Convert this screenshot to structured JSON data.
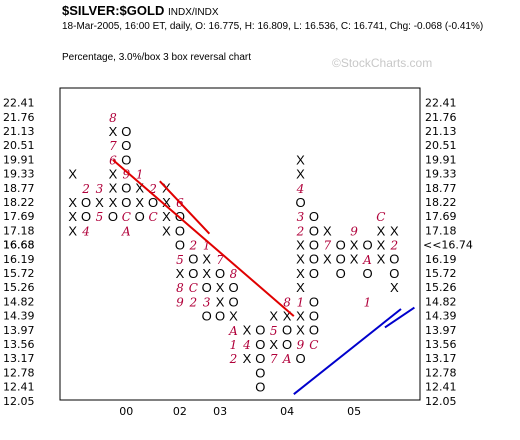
{
  "header": {
    "title": "$SILVER:$GOLD",
    "title_suffix": "INDX/INDX",
    "quote_line": "18-Mar-2005, 16:00 ET, daily, O: 16.775, H: 16.809, L: 16.536, C: 16.741, Chg: -0.068 (-0.41%)",
    "chart_desc": "Percentage, 3.0%/box 3 box reversal chart",
    "watermark": "©StockCharts.com"
  },
  "colors": {
    "x_mark": "#000000",
    "o_mark": "#000000",
    "month_mark": "#b0003a",
    "resistance_line": "#e00000",
    "support_line": "#0000cc",
    "highlight_label": "#b0003a"
  },
  "chart_data": {
    "type": "point-and-figure",
    "box_percent": 3.0,
    "reversal_boxes": 3,
    "y_ticks": [
      "22.41",
      "21.76",
      "21.13",
      "20.51",
      "19.91",
      "19.33",
      "18.77",
      "18.22",
      "17.69",
      "17.18",
      "16.68",
      "16.19",
      "15.72",
      "15.26",
      "14.82",
      "14.39",
      "13.97",
      "13.56",
      "13.17",
      "12.78",
      "12.41",
      "12.05"
    ],
    "y_ticks_right": [
      "22.41",
      "21.76",
      "21.13",
      "20.51",
      "19.91",
      "19.33",
      "18.77",
      "18.22",
      "17.69",
      "17.18",
      "",
      "16.19",
      "15.72",
      "15.26",
      "14.82",
      "14.39",
      "13.97",
      "13.56",
      "13.17",
      "12.78",
      "12.41",
      "12.05"
    ],
    "y_highlight_left": "16.68",
    "y_highlight_right": "<<16.74",
    "x_labels": [
      {
        "label": "00",
        "col": 4
      },
      {
        "label": "02",
        "col": 8
      },
      {
        "label": "03",
        "col": 11
      },
      {
        "label": "04",
        "col": 16
      },
      {
        "label": "05",
        "col": 21
      }
    ],
    "columns": [
      {
        "col": 0,
        "type": "X",
        "marks": [
          {
            "row": 5,
            "c": "X"
          },
          {
            "row": 7,
            "c": "X"
          },
          {
            "row": 8,
            "c": "X"
          },
          {
            "row": 9,
            "c": "X"
          }
        ]
      },
      {
        "col": 1,
        "type": "O",
        "marks": [
          {
            "row": 6,
            "c": "2"
          },
          {
            "row": 7,
            "c": "O"
          },
          {
            "row": 8,
            "c": "O"
          },
          {
            "row": 9,
            "c": "4"
          }
        ]
      },
      {
        "col": 2,
        "type": "X",
        "marks": [
          {
            "row": 6,
            "c": "3"
          },
          {
            "row": 7,
            "c": "X"
          },
          {
            "row": 8,
            "c": "5"
          }
        ]
      },
      {
        "col": 3,
        "type": "O",
        "marks": [
          {
            "row": 1,
            "c": "8"
          },
          {
            "row": 2,
            "c": "X"
          },
          {
            "row": 3,
            "c": "7"
          },
          {
            "row": 4,
            "c": "6"
          },
          {
            "row": 5,
            "c": "X"
          },
          {
            "row": 6,
            "c": "X"
          },
          {
            "row": 7,
            "c": "X"
          },
          {
            "row": 8,
            "c": "O"
          }
        ]
      },
      {
        "col": 4,
        "type": "X",
        "marks": [
          {
            "row": 2,
            "c": "O"
          },
          {
            "row": 3,
            "c": "O"
          },
          {
            "row": 4,
            "c": "O"
          },
          {
            "row": 5,
            "c": "9"
          },
          {
            "row": 6,
            "c": "O"
          },
          {
            "row": 7,
            "c": "O"
          },
          {
            "row": 8,
            "c": "C"
          },
          {
            "row": 9,
            "c": "A"
          }
        ]
      },
      {
        "col": 5,
        "type": "O",
        "marks": [
          {
            "row": 5,
            "c": "1"
          },
          {
            "row": 6,
            "c": "X"
          },
          {
            "row": 7,
            "c": "X"
          },
          {
            "row": 8,
            "c": "O"
          }
        ]
      },
      {
        "col": 6,
        "type": "X",
        "marks": [
          {
            "row": 6,
            "c": "2"
          },
          {
            "row": 7,
            "c": "O"
          },
          {
            "row": 8,
            "c": "C"
          }
        ]
      },
      {
        "col": 7,
        "type": "O",
        "marks": [
          {
            "row": 6,
            "c": "X"
          },
          {
            "row": 7,
            "c": "X"
          },
          {
            "row": 8,
            "c": "X"
          },
          {
            "row": 9,
            "c": "X"
          }
        ]
      },
      {
        "col": 8,
        "type": "X",
        "marks": [
          {
            "row": 7,
            "c": "6"
          },
          {
            "row": 8,
            "c": "O"
          },
          {
            "row": 9,
            "c": "O"
          },
          {
            "row": 10,
            "c": "O"
          },
          {
            "row": 11,
            "c": "5"
          },
          {
            "row": 12,
            "c": "X"
          },
          {
            "row": 13,
            "c": "8"
          },
          {
            "row": 14,
            "c": "9"
          }
        ]
      },
      {
        "col": 9,
        "type": "O",
        "marks": [
          {
            "row": 10,
            "c": "2"
          },
          {
            "row": 11,
            "c": "O"
          },
          {
            "row": 12,
            "c": "O"
          },
          {
            "row": 13,
            "c": "C"
          },
          {
            "row": 14,
            "c": "2"
          }
        ]
      },
      {
        "col": 10,
        "type": "X",
        "marks": [
          {
            "row": 10,
            "c": "1"
          },
          {
            "row": 11,
            "c": "X"
          },
          {
            "row": 12,
            "c": "X"
          },
          {
            "row": 13,
            "c": "O"
          },
          {
            "row": 14,
            "c": "3"
          },
          {
            "row": 15,
            "c": "O"
          }
        ]
      },
      {
        "col": 11,
        "type": "O",
        "marks": [
          {
            "row": 11,
            "c": "7"
          },
          {
            "row": 12,
            "c": "O"
          },
          {
            "row": 13,
            "c": "X"
          },
          {
            "row": 14,
            "c": "X"
          },
          {
            "row": 15,
            "c": "O"
          }
        ]
      },
      {
        "col": 12,
        "type": "X",
        "marks": [
          {
            "row": 12,
            "c": "8"
          },
          {
            "row": 13,
            "c": "O"
          },
          {
            "row": 14,
            "c": "O"
          },
          {
            "row": 15,
            "c": "X"
          },
          {
            "row": 16,
            "c": "A"
          },
          {
            "row": 17,
            "c": "1"
          },
          {
            "row": 18,
            "c": "2"
          }
        ]
      },
      {
        "col": 13,
        "type": "O",
        "marks": [
          {
            "row": 16,
            "c": "X"
          },
          {
            "row": 17,
            "c": "4"
          },
          {
            "row": 18,
            "c": "X"
          }
        ]
      },
      {
        "col": 14,
        "type": "X",
        "marks": [
          {
            "row": 16,
            "c": "O"
          },
          {
            "row": 17,
            "c": "O"
          },
          {
            "row": 18,
            "c": "O"
          },
          {
            "row": 19,
            "c": "O"
          },
          {
            "row": 20,
            "c": "O"
          }
        ]
      },
      {
        "col": 15,
        "type": "O",
        "marks": [
          {
            "row": 15,
            "c": "X"
          },
          {
            "row": 16,
            "c": "5"
          },
          {
            "row": 17,
            "c": "X"
          },
          {
            "row": 18,
            "c": "7"
          }
        ]
      },
      {
        "col": 16,
        "type": "X",
        "marks": [
          {
            "row": 14,
            "c": "8"
          },
          {
            "row": 15,
            "c": "X"
          },
          {
            "row": 16,
            "c": "O"
          },
          {
            "row": 17,
            "c": "O"
          },
          {
            "row": 18,
            "c": "A"
          }
        ]
      },
      {
        "col": 17,
        "type": "O",
        "marks": [
          {
            "row": 4,
            "c": "X"
          },
          {
            "row": 5,
            "c": "X"
          },
          {
            "row": 6,
            "c": "4"
          },
          {
            "row": 7,
            "c": "O"
          },
          {
            "row": 8,
            "c": "3"
          },
          {
            "row": 9,
            "c": "2"
          },
          {
            "row": 10,
            "c": "X"
          },
          {
            "row": 11,
            "c": "X"
          },
          {
            "row": 12,
            "c": "X"
          },
          {
            "row": 13,
            "c": "X"
          },
          {
            "row": 14,
            "c": "1"
          },
          {
            "row": 15,
            "c": "X"
          },
          {
            "row": 16,
            "c": "X"
          },
          {
            "row": 17,
            "c": "9"
          },
          {
            "row": 18,
            "c": "O"
          }
        ]
      },
      {
        "col": 18,
        "type": "X",
        "marks": [
          {
            "row": 8,
            "c": "O"
          },
          {
            "row": 9,
            "c": "O"
          },
          {
            "row": 10,
            "c": "O"
          },
          {
            "row": 11,
            "c": "O"
          },
          {
            "row": 12,
            "c": "O"
          },
          {
            "row": 14,
            "c": "O"
          },
          {
            "row": 15,
            "c": "O"
          },
          {
            "row": 16,
            "c": "O"
          },
          {
            "row": 17,
            "c": "C"
          }
        ]
      },
      {
        "col": 19,
        "type": "O",
        "marks": [
          {
            "row": 9,
            "c": "X"
          },
          {
            "row": 10,
            "c": "7"
          },
          {
            "row": 11,
            "c": "X"
          }
        ]
      },
      {
        "col": 20,
        "type": "X",
        "marks": [
          {
            "row": 10,
            "c": "O"
          },
          {
            "row": 11,
            "c": "O"
          },
          {
            "row": 12,
            "c": "O"
          }
        ]
      },
      {
        "col": 21,
        "type": "O",
        "marks": [
          {
            "row": 9,
            "c": "9"
          },
          {
            "row": 10,
            "c": "X"
          },
          {
            "row": 11,
            "c": "X"
          }
        ]
      },
      {
        "col": 22,
        "type": "X",
        "marks": [
          {
            "row": 10,
            "c": "O"
          },
          {
            "row": 11,
            "c": "A"
          },
          {
            "row": 12,
            "c": "O"
          },
          {
            "row": 14,
            "c": "1"
          }
        ]
      },
      {
        "col": 23,
        "type": "O",
        "marks": [
          {
            "row": 8,
            "c": "C"
          },
          {
            "row": 9,
            "c": "X"
          },
          {
            "row": 10,
            "c": "X"
          },
          {
            "row": 11,
            "c": "X"
          }
        ]
      },
      {
        "col": 24,
        "type": "X",
        "marks": [
          {
            "row": 9,
            "c": "X"
          },
          {
            "row": 10,
            "c": "2"
          },
          {
            "row": 11,
            "c": "O"
          },
          {
            "row": 12,
            "c": "O"
          },
          {
            "row": 13,
            "c": "X"
          }
        ]
      }
    ],
    "trend_lines": [
      {
        "name": "resistance",
        "from": {
          "col": 3,
          "row": 4
        },
        "to": {
          "col": 16.5,
          "row": 15
        }
      },
      {
        "name": "resistance-secondary",
        "from": {
          "col": 6.5,
          "row": 5.5
        },
        "to": {
          "col": 10.2,
          "row": 9.2
        }
      },
      {
        "name": "support",
        "from": {
          "col": 16.5,
          "row": 20.5
        },
        "to": {
          "col": 24.5,
          "row": 14.5
        }
      },
      {
        "name": "support-secondary",
        "from": {
          "col": 23.3,
          "row": 15.8
        },
        "to": {
          "col": 25.5,
          "row": 14.4
        }
      }
    ],
    "grid": false
  }
}
